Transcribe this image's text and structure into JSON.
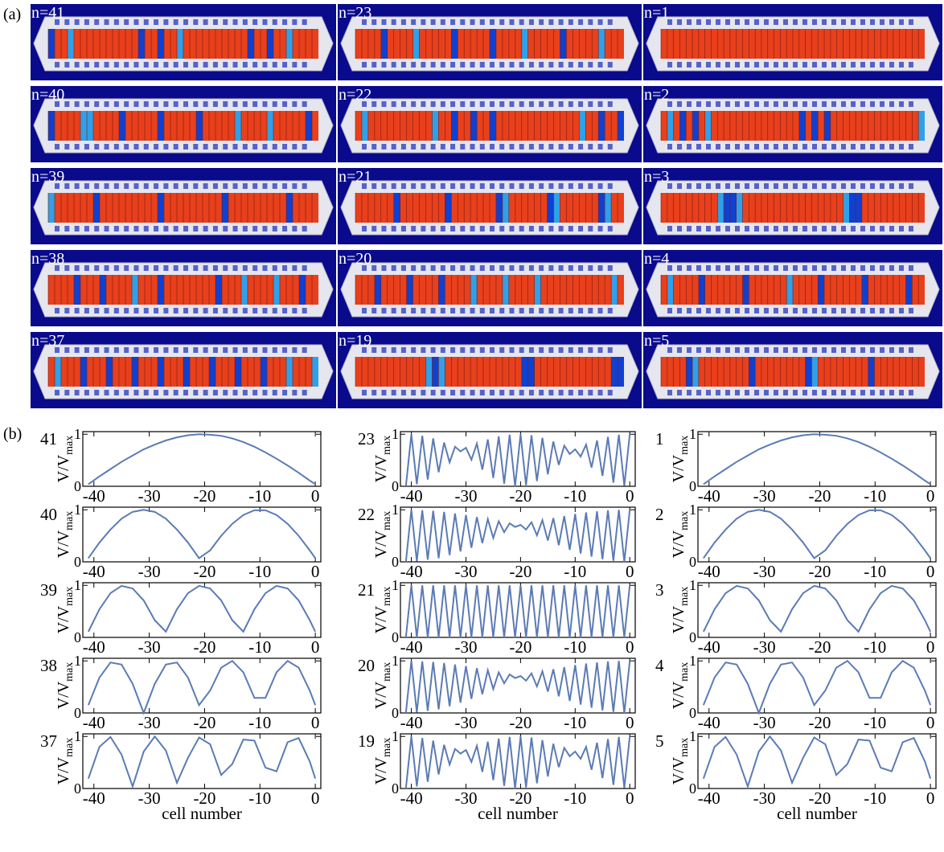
{
  "panel_a": {
    "label": "(a)",
    "panels": [
      "n=41",
      "n=23",
      "n=1",
      "n=40",
      "n=22",
      "n=2",
      "n=39",
      "n=21",
      "n=3",
      "n=38",
      "n=20",
      "n=4",
      "n=37",
      "n=19",
      "n=5"
    ]
  },
  "panel_b": {
    "label": "(b)"
  },
  "chart_data": [
    {
      "type": "line",
      "title": "41",
      "ylabel": "V/V",
      "ylabel_sub": "max",
      "color": "#5b7bb5",
      "xlim": [
        -42,
        1
      ],
      "ylim": [
        0,
        1.05
      ],
      "xticks": [
        -40,
        -30,
        -20,
        -10,
        0
      ],
      "yticks": [
        0,
        1
      ],
      "x": [
        -41,
        -39,
        -37,
        -35,
        -33,
        -31,
        -29,
        -27,
        -25,
        -23,
        -21,
        -19,
        -17,
        -15,
        -13,
        -11,
        -9,
        -7,
        -5,
        -3,
        -1,
        0
      ],
      "values": [
        0.04,
        0.19,
        0.33,
        0.47,
        0.59,
        0.71,
        0.8,
        0.88,
        0.94,
        0.98,
        1.0,
        0.99,
        0.97,
        0.92,
        0.85,
        0.76,
        0.65,
        0.53,
        0.4,
        0.26,
        0.11,
        0.04
      ]
    },
    {
      "type": "line",
      "title": "23",
      "ylabel": "V/V",
      "ylabel_sub": "max",
      "color": "#5b7bb5",
      "xlim": [
        -42,
        1
      ],
      "ylim": [
        0,
        1.05
      ],
      "xticks": [
        -40,
        -30,
        -20,
        -10,
        0
      ],
      "yticks": [
        0,
        1
      ],
      "x": [
        -41,
        -40,
        -39,
        -38,
        -37,
        -36,
        -35,
        -34,
        -33,
        -32,
        -31,
        -30,
        -29,
        -28,
        -27,
        -26,
        -25,
        -24,
        -23,
        -22,
        -21,
        -20,
        -19,
        -18,
        -17,
        -16,
        -15,
        -14,
        -13,
        -12,
        -11,
        -10,
        -9,
        -8,
        -7,
        -6,
        -5,
        -4,
        -3,
        -2,
        -1,
        0
      ],
      "values": [
        0.0,
        1.0,
        0.04,
        0.97,
        0.13,
        0.92,
        0.27,
        0.84,
        0.46,
        0.76,
        0.67,
        0.74,
        0.51,
        0.82,
        0.32,
        0.9,
        0.16,
        0.96,
        0.05,
        0.99,
        0.0,
        1.0,
        0.02,
        0.98,
        0.1,
        0.93,
        0.23,
        0.86,
        0.41,
        0.78,
        0.62,
        0.71,
        0.57,
        0.8,
        0.36,
        0.88,
        0.2,
        0.95,
        0.07,
        0.99,
        0.01,
        1.0
      ]
    },
    {
      "type": "line",
      "title": "1",
      "ylabel": "V/V",
      "ylabel_sub": "max",
      "color": "#5b7bb5",
      "xlim": [
        -42,
        1
      ],
      "ylim": [
        0,
        1.05
      ],
      "xticks": [
        -40,
        -30,
        -20,
        -10,
        0
      ],
      "yticks": [
        0,
        1
      ],
      "x": [
        -41,
        -39,
        -37,
        -35,
        -33,
        -31,
        -29,
        -27,
        -25,
        -23,
        -21,
        -19,
        -17,
        -15,
        -13,
        -11,
        -9,
        -7,
        -5,
        -3,
        -1,
        0
      ],
      "values": [
        0.04,
        0.19,
        0.33,
        0.47,
        0.59,
        0.71,
        0.8,
        0.88,
        0.94,
        0.98,
        1.0,
        0.99,
        0.97,
        0.92,
        0.85,
        0.76,
        0.65,
        0.53,
        0.4,
        0.26,
        0.11,
        0.04
      ]
    },
    {
      "type": "line",
      "title": "40",
      "ylabel": "V/V",
      "ylabel_sub": "max",
      "color": "#5b7bb5",
      "xlim": [
        -42,
        1
      ],
      "ylim": [
        0,
        1.05
      ],
      "xticks": [
        -40,
        -30,
        -20,
        -10,
        0
      ],
      "yticks": [
        0,
        1
      ],
      "x": [
        -41,
        -39,
        -37,
        -35,
        -33,
        -31,
        -29,
        -27,
        -25,
        -23,
        -21,
        -19,
        -17,
        -15,
        -13,
        -11,
        -9,
        -7,
        -5,
        -3,
        -1,
        0
      ],
      "values": [
        0.07,
        0.37,
        0.62,
        0.83,
        0.96,
        1.0,
        0.96,
        0.83,
        0.62,
        0.37,
        0.07,
        0.22,
        0.5,
        0.73,
        0.9,
        0.99,
        0.99,
        0.9,
        0.73,
        0.5,
        0.22,
        0.07
      ]
    },
    {
      "type": "line",
      "title": "22",
      "ylabel": "V/V",
      "ylabel_sub": "max",
      "color": "#5b7bb5",
      "xlim": [
        -42,
        1
      ],
      "ylim": [
        0,
        1.05
      ],
      "xticks": [
        -40,
        -30,
        -20,
        -10,
        0
      ],
      "yticks": [
        0,
        1
      ],
      "x": [
        -41,
        -40,
        -39,
        -38,
        -37,
        -36,
        -35,
        -34,
        -33,
        -32,
        -31,
        -30,
        -29,
        -28,
        -27,
        -26,
        -25,
        -24,
        -23,
        -22,
        -21,
        -20,
        -19,
        -18,
        -17,
        -16,
        -15,
        -14,
        -13,
        -12,
        -11,
        -10,
        -9,
        -8,
        -7,
        -6,
        -5,
        -4,
        -3,
        -2,
        -1,
        0
      ],
      "values": [
        0.0,
        1.0,
        0.01,
        0.99,
        0.04,
        0.98,
        0.07,
        0.96,
        0.13,
        0.93,
        0.2,
        0.9,
        0.27,
        0.86,
        0.36,
        0.82,
        0.46,
        0.78,
        0.57,
        0.74,
        0.67,
        0.71,
        0.62,
        0.76,
        0.51,
        0.8,
        0.41,
        0.84,
        0.32,
        0.88,
        0.23,
        0.92,
        0.16,
        0.95,
        0.1,
        0.97,
        0.05,
        0.99,
        0.02,
        1.0,
        0.0,
        1.0
      ]
    },
    {
      "type": "line",
      "title": "2",
      "ylabel": "V/V",
      "ylabel_sub": "max",
      "color": "#5b7bb5",
      "xlim": [
        -42,
        1
      ],
      "ylim": [
        0,
        1.05
      ],
      "xticks": [
        -40,
        -30,
        -20,
        -10,
        0
      ],
      "yticks": [
        0,
        1
      ],
      "x": [
        -41,
        -39,
        -37,
        -35,
        -33,
        -31,
        -29,
        -27,
        -25,
        -23,
        -21,
        -19,
        -17,
        -15,
        -13,
        -11,
        -9,
        -7,
        -5,
        -3,
        -1,
        0
      ],
      "values": [
        0.07,
        0.37,
        0.62,
        0.83,
        0.96,
        1.0,
        0.96,
        0.83,
        0.62,
        0.37,
        0.07,
        0.22,
        0.5,
        0.73,
        0.9,
        0.99,
        0.99,
        0.9,
        0.73,
        0.5,
        0.22,
        0.07
      ]
    },
    {
      "type": "line",
      "title": "39",
      "ylabel": "V/V",
      "ylabel_sub": "max",
      "color": "#5b7bb5",
      "xlim": [
        -42,
        1
      ],
      "ylim": [
        0,
        1.05
      ],
      "xticks": [
        -40,
        -30,
        -20,
        -10,
        0
      ],
      "yticks": [
        0,
        1
      ],
      "x": [
        -41,
        -39,
        -37,
        -35,
        -33,
        -31,
        -29,
        -27,
        -25,
        -23,
        -21,
        -19,
        -17,
        -15,
        -13,
        -11,
        -9,
        -7,
        -5,
        -3,
        -1,
        0
      ],
      "values": [
        0.11,
        0.54,
        0.85,
        0.99,
        0.94,
        0.71,
        0.33,
        0.11,
        0.54,
        0.85,
        0.99,
        0.94,
        0.71,
        0.33,
        0.11,
        0.54,
        0.85,
        0.99,
        0.94,
        0.71,
        0.33,
        0.11
      ]
    },
    {
      "type": "line",
      "title": "21",
      "ylabel": "V/V",
      "ylabel_sub": "max",
      "color": "#5b7bb5",
      "xlim": [
        -42,
        1
      ],
      "ylim": [
        0,
        1.05
      ],
      "xticks": [
        -40,
        -30,
        -20,
        -10,
        0
      ],
      "yticks": [
        0,
        1
      ],
      "x": [
        -41,
        -40,
        -39,
        -38,
        -37,
        -36,
        -35,
        -34,
        -33,
        -32,
        -31,
        -30,
        -29,
        -28,
        -27,
        -26,
        -25,
        -24,
        -23,
        -22,
        -21,
        -20,
        -19,
        -18,
        -17,
        -16,
        -15,
        -14,
        -13,
        -12,
        -11,
        -10,
        -9,
        -8,
        -7,
        -6,
        -5,
        -4,
        -3,
        -2,
        -1,
        0
      ],
      "values": [
        0,
        1,
        0,
        1,
        0,
        1,
        0,
        1,
        0,
        1,
        0,
        1,
        0,
        1,
        0,
        1,
        0,
        1,
        0,
        1,
        0,
        1,
        0,
        1,
        0,
        1,
        0,
        1,
        0,
        1,
        0,
        1,
        0,
        1,
        0,
        1,
        0,
        1,
        0,
        1,
        0,
        1
      ]
    },
    {
      "type": "line",
      "title": "3",
      "ylabel": "V/V",
      "ylabel_sub": "max",
      "color": "#5b7bb5",
      "xlim": [
        -42,
        1
      ],
      "ylim": [
        0,
        1.05
      ],
      "xticks": [
        -40,
        -30,
        -20,
        -10,
        0
      ],
      "yticks": [
        0,
        1
      ],
      "x": [
        -41,
        -39,
        -37,
        -35,
        -33,
        -31,
        -29,
        -27,
        -25,
        -23,
        -21,
        -19,
        -17,
        -15,
        -13,
        -11,
        -9,
        -7,
        -5,
        -3,
        -1,
        0
      ],
      "values": [
        0.11,
        0.54,
        0.85,
        0.99,
        0.94,
        0.71,
        0.33,
        0.11,
        0.54,
        0.85,
        0.99,
        0.94,
        0.71,
        0.33,
        0.11,
        0.54,
        0.85,
        0.99,
        0.94,
        0.71,
        0.33,
        0.11
      ]
    },
    {
      "type": "line",
      "title": "38",
      "ylabel": "V/V",
      "ylabel_sub": "max",
      "color": "#5b7bb5",
      "xlim": [
        -42,
        1
      ],
      "ylim": [
        0,
        1.05
      ],
      "xticks": [
        -40,
        -30,
        -20,
        -10,
        0
      ],
      "yticks": [
        0,
        1
      ],
      "x": [
        -41,
        -39,
        -37,
        -35,
        -33,
        -31,
        -29,
        -27,
        -25,
        -23,
        -21,
        -19,
        -17,
        -15,
        -13,
        -11,
        -9,
        -7,
        -5,
        -3,
        -1,
        0
      ],
      "values": [
        0.15,
        0.68,
        0.97,
        0.93,
        0.56,
        0.0,
        0.56,
        0.93,
        0.97,
        0.68,
        0.15,
        0.43,
        0.87,
        1.0,
        0.78,
        0.29,
        0.29,
        0.78,
        1.0,
        0.87,
        0.43,
        0.15
      ]
    },
    {
      "type": "line",
      "title": "20",
      "ylabel": "V/V",
      "ylabel_sub": "max",
      "color": "#5b7bb5",
      "xlim": [
        -42,
        1
      ],
      "ylim": [
        0,
        1.05
      ],
      "xticks": [
        -40,
        -30,
        -20,
        -10,
        0
      ],
      "yticks": [
        0,
        1
      ],
      "x": [
        -41,
        -40,
        -39,
        -38,
        -37,
        -36,
        -35,
        -34,
        -33,
        -32,
        -31,
        -30,
        -29,
        -28,
        -27,
        -26,
        -25,
        -24,
        -23,
        -22,
        -21,
        -20,
        -19,
        -18,
        -17,
        -16,
        -15,
        -14,
        -13,
        -12,
        -11,
        -10,
        -9,
        -8,
        -7,
        -6,
        -5,
        -4,
        -3,
        -2,
        -1,
        0
      ],
      "values": [
        0.0,
        1.0,
        0.01,
        0.99,
        0.04,
        0.98,
        0.07,
        0.96,
        0.13,
        0.93,
        0.2,
        0.9,
        0.27,
        0.86,
        0.36,
        0.82,
        0.46,
        0.78,
        0.57,
        0.74,
        0.67,
        0.71,
        0.62,
        0.76,
        0.51,
        0.8,
        0.41,
        0.84,
        0.32,
        0.88,
        0.23,
        0.92,
        0.16,
        0.95,
        0.1,
        0.97,
        0.05,
        0.99,
        0.02,
        1.0,
        0.0,
        1.0
      ]
    },
    {
      "type": "line",
      "title": "4",
      "ylabel": "V/V",
      "ylabel_sub": "max",
      "color": "#5b7bb5",
      "xlim": [
        -42,
        1
      ],
      "ylim": [
        0,
        1.05
      ],
      "xticks": [
        -40,
        -30,
        -20,
        -10,
        0
      ],
      "yticks": [
        0,
        1
      ],
      "x": [
        -41,
        -39,
        -37,
        -35,
        -33,
        -31,
        -29,
        -27,
        -25,
        -23,
        -21,
        -19,
        -17,
        -15,
        -13,
        -11,
        -9,
        -7,
        -5,
        -3,
        -1,
        0
      ],
      "values": [
        0.15,
        0.68,
        0.97,
        0.93,
        0.56,
        0.0,
        0.56,
        0.93,
        0.97,
        0.68,
        0.15,
        0.43,
        0.87,
        1.0,
        0.78,
        0.29,
        0.29,
        0.78,
        1.0,
        0.87,
        0.43,
        0.15
      ]
    },
    {
      "type": "line",
      "title": "37",
      "ylabel": "V/V",
      "ylabel_sub": "max",
      "xlabel": "cell number",
      "color": "#5b7bb5",
      "xlim": [
        -42,
        1
      ],
      "ylim": [
        0,
        1.05
      ],
      "xticks": [
        -40,
        -30,
        -20,
        -10,
        0
      ],
      "yticks": [
        0,
        1
      ],
      "x": [
        -41,
        -39,
        -37,
        -35,
        -33,
        -31,
        -29,
        -27,
        -25,
        -23,
        -21,
        -19,
        -17,
        -15,
        -13,
        -11,
        -9,
        -7,
        -5,
        -3,
        -1,
        0
      ],
      "values": [
        0.19,
        0.8,
        0.99,
        0.65,
        0.04,
        0.71,
        1.0,
        0.73,
        0.11,
        0.59,
        0.98,
        0.85,
        0.26,
        0.47,
        0.94,
        0.92,
        0.4,
        0.33,
        0.89,
        0.97,
        0.52,
        0.19
      ]
    },
    {
      "type": "line",
      "title": "19",
      "ylabel": "V/V",
      "ylabel_sub": "max",
      "xlabel": "cell number",
      "color": "#5b7bb5",
      "xlim": [
        -42,
        1
      ],
      "ylim": [
        0,
        1.05
      ],
      "xticks": [
        -40,
        -30,
        -20,
        -10,
        0
      ],
      "yticks": [
        0,
        1
      ],
      "x": [
        -41,
        -40,
        -39,
        -38,
        -37,
        -36,
        -35,
        -34,
        -33,
        -32,
        -31,
        -30,
        -29,
        -28,
        -27,
        -26,
        -25,
        -24,
        -23,
        -22,
        -21,
        -20,
        -19,
        -18,
        -17,
        -16,
        -15,
        -14,
        -13,
        -12,
        -11,
        -10,
        -9,
        -8,
        -7,
        -6,
        -5,
        -4,
        -3,
        -2,
        -1,
        0
      ],
      "values": [
        0.0,
        1.0,
        0.04,
        0.97,
        0.13,
        0.92,
        0.27,
        0.84,
        0.46,
        0.76,
        0.67,
        0.74,
        0.51,
        0.82,
        0.32,
        0.9,
        0.16,
        0.96,
        0.05,
        0.99,
        0.0,
        1.0,
        0.02,
        0.98,
        0.1,
        0.93,
        0.23,
        0.86,
        0.41,
        0.78,
        0.62,
        0.71,
        0.57,
        0.8,
        0.36,
        0.88,
        0.2,
        0.95,
        0.07,
        0.99,
        0.01,
        1.0
      ]
    },
    {
      "type": "line",
      "title": "5",
      "ylabel": "V/V",
      "ylabel_sub": "max",
      "xlabel": "cell number",
      "color": "#5b7bb5",
      "xlim": [
        -42,
        1
      ],
      "ylim": [
        0,
        1.05
      ],
      "xticks": [
        -40,
        -30,
        -20,
        -10,
        0
      ],
      "yticks": [
        0,
        1
      ],
      "x": [
        -41,
        -39,
        -37,
        -35,
        -33,
        -31,
        -29,
        -27,
        -25,
        -23,
        -21,
        -19,
        -17,
        -15,
        -13,
        -11,
        -9,
        -7,
        -5,
        -3,
        -1,
        0
      ],
      "values": [
        0.19,
        0.8,
        0.99,
        0.65,
        0.04,
        0.71,
        1.0,
        0.73,
        0.11,
        0.59,
        0.98,
        0.85,
        0.26,
        0.47,
        0.94,
        0.92,
        0.4,
        0.33,
        0.89,
        0.97,
        0.52,
        0.19
      ]
    }
  ]
}
